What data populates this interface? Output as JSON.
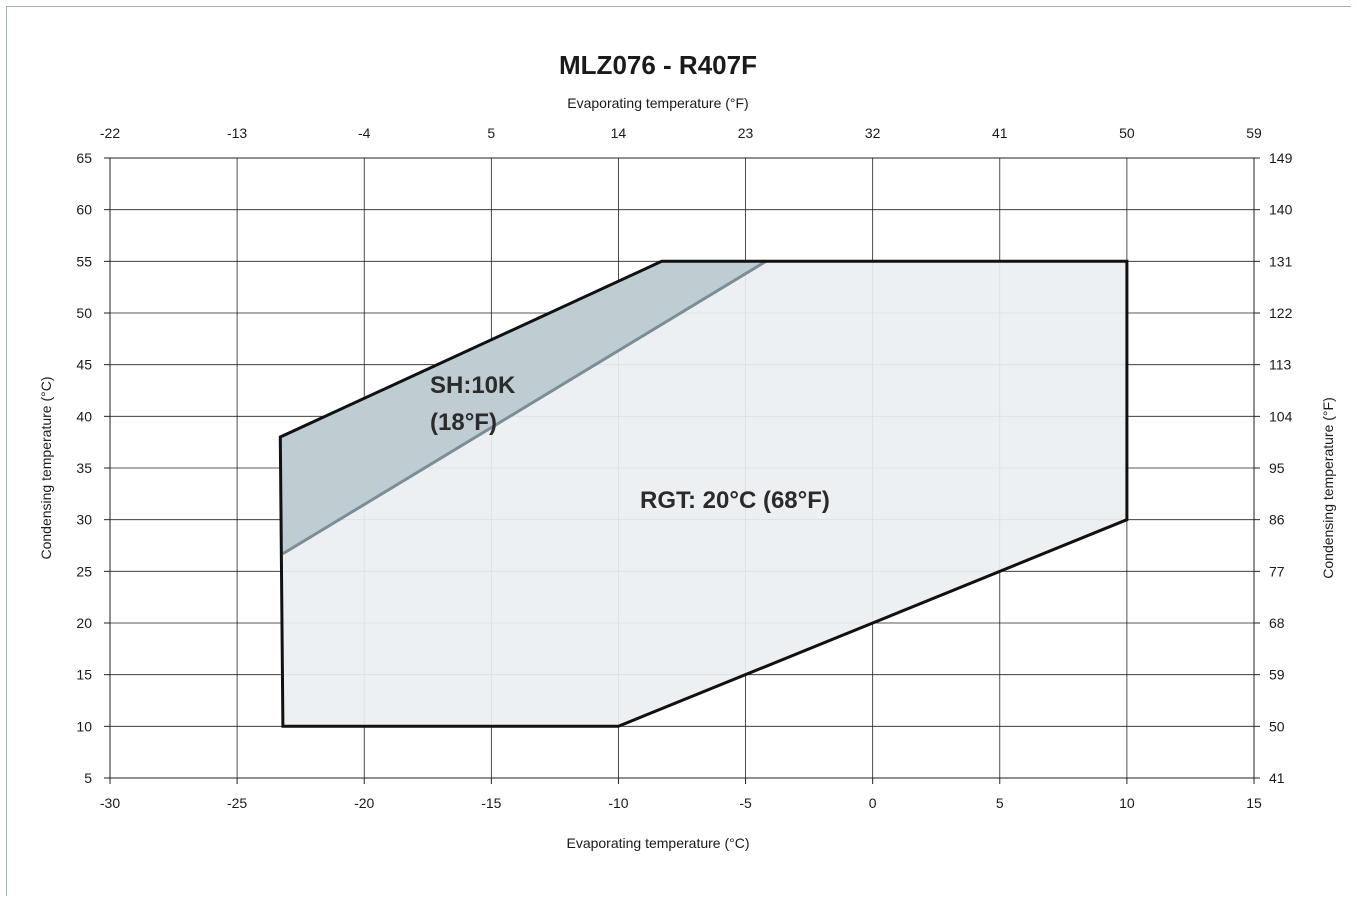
{
  "chart_data": {
    "type": "area",
    "title": "MLZ076  - R407F",
    "xlabel": "Evaporating temperature (°C)",
    "xlabel_top": "Evaporating temperature (°F)",
    "ylabel": "Condensing temperature (°C)",
    "ylabel_right": "Condensing temperature (°F)",
    "xlim": [
      -30,
      15
    ],
    "ylim": [
      5,
      65
    ],
    "grid": true,
    "x_ticks": [
      "-30",
      "-25",
      "-20",
      "-15",
      "-10",
      "-5",
      "0",
      "5",
      "10",
      "15"
    ],
    "x_ticks_top": [
      "-22",
      "-13",
      "-4",
      "5",
      "14",
      "23",
      "32",
      "41",
      "50",
      "59"
    ],
    "y_ticks": [
      "5",
      "10",
      "15",
      "20",
      "25",
      "30",
      "35",
      "40",
      "45",
      "50",
      "55",
      "60",
      "65"
    ],
    "y_ticks_right": [
      "41",
      "50",
      "59",
      "68",
      "77",
      "86",
      "95",
      "104",
      "113",
      "122",
      "131",
      "140",
      "149"
    ],
    "series": [
      {
        "name": "RGT: 20°C (68°F)",
        "x": [
          -23.3,
          -23.2,
          -10,
          10,
          10,
          -8.3,
          -23.3
        ],
        "y": [
          38,
          10,
          10,
          30,
          55,
          55,
          38
        ]
      },
      {
        "name": "SH:10K (18°F)",
        "x": [
          -23.3,
          -23.2,
          -4.2,
          -8.3,
          -23.3
        ],
        "y": [
          38,
          26.7,
          55,
          55,
          38
        ]
      }
    ],
    "labels": {
      "sh_line1": "SH:10K",
      "sh_line2": "(18°F)",
      "rgt": "RGT: 20°C (68°F)"
    },
    "colors": {
      "rgt_fill": "#ebeff2",
      "sh_fill": "#bdc9d0",
      "sh_line": "#7a8e99",
      "envelope": "#111111",
      "grid": "#222222"
    }
  }
}
